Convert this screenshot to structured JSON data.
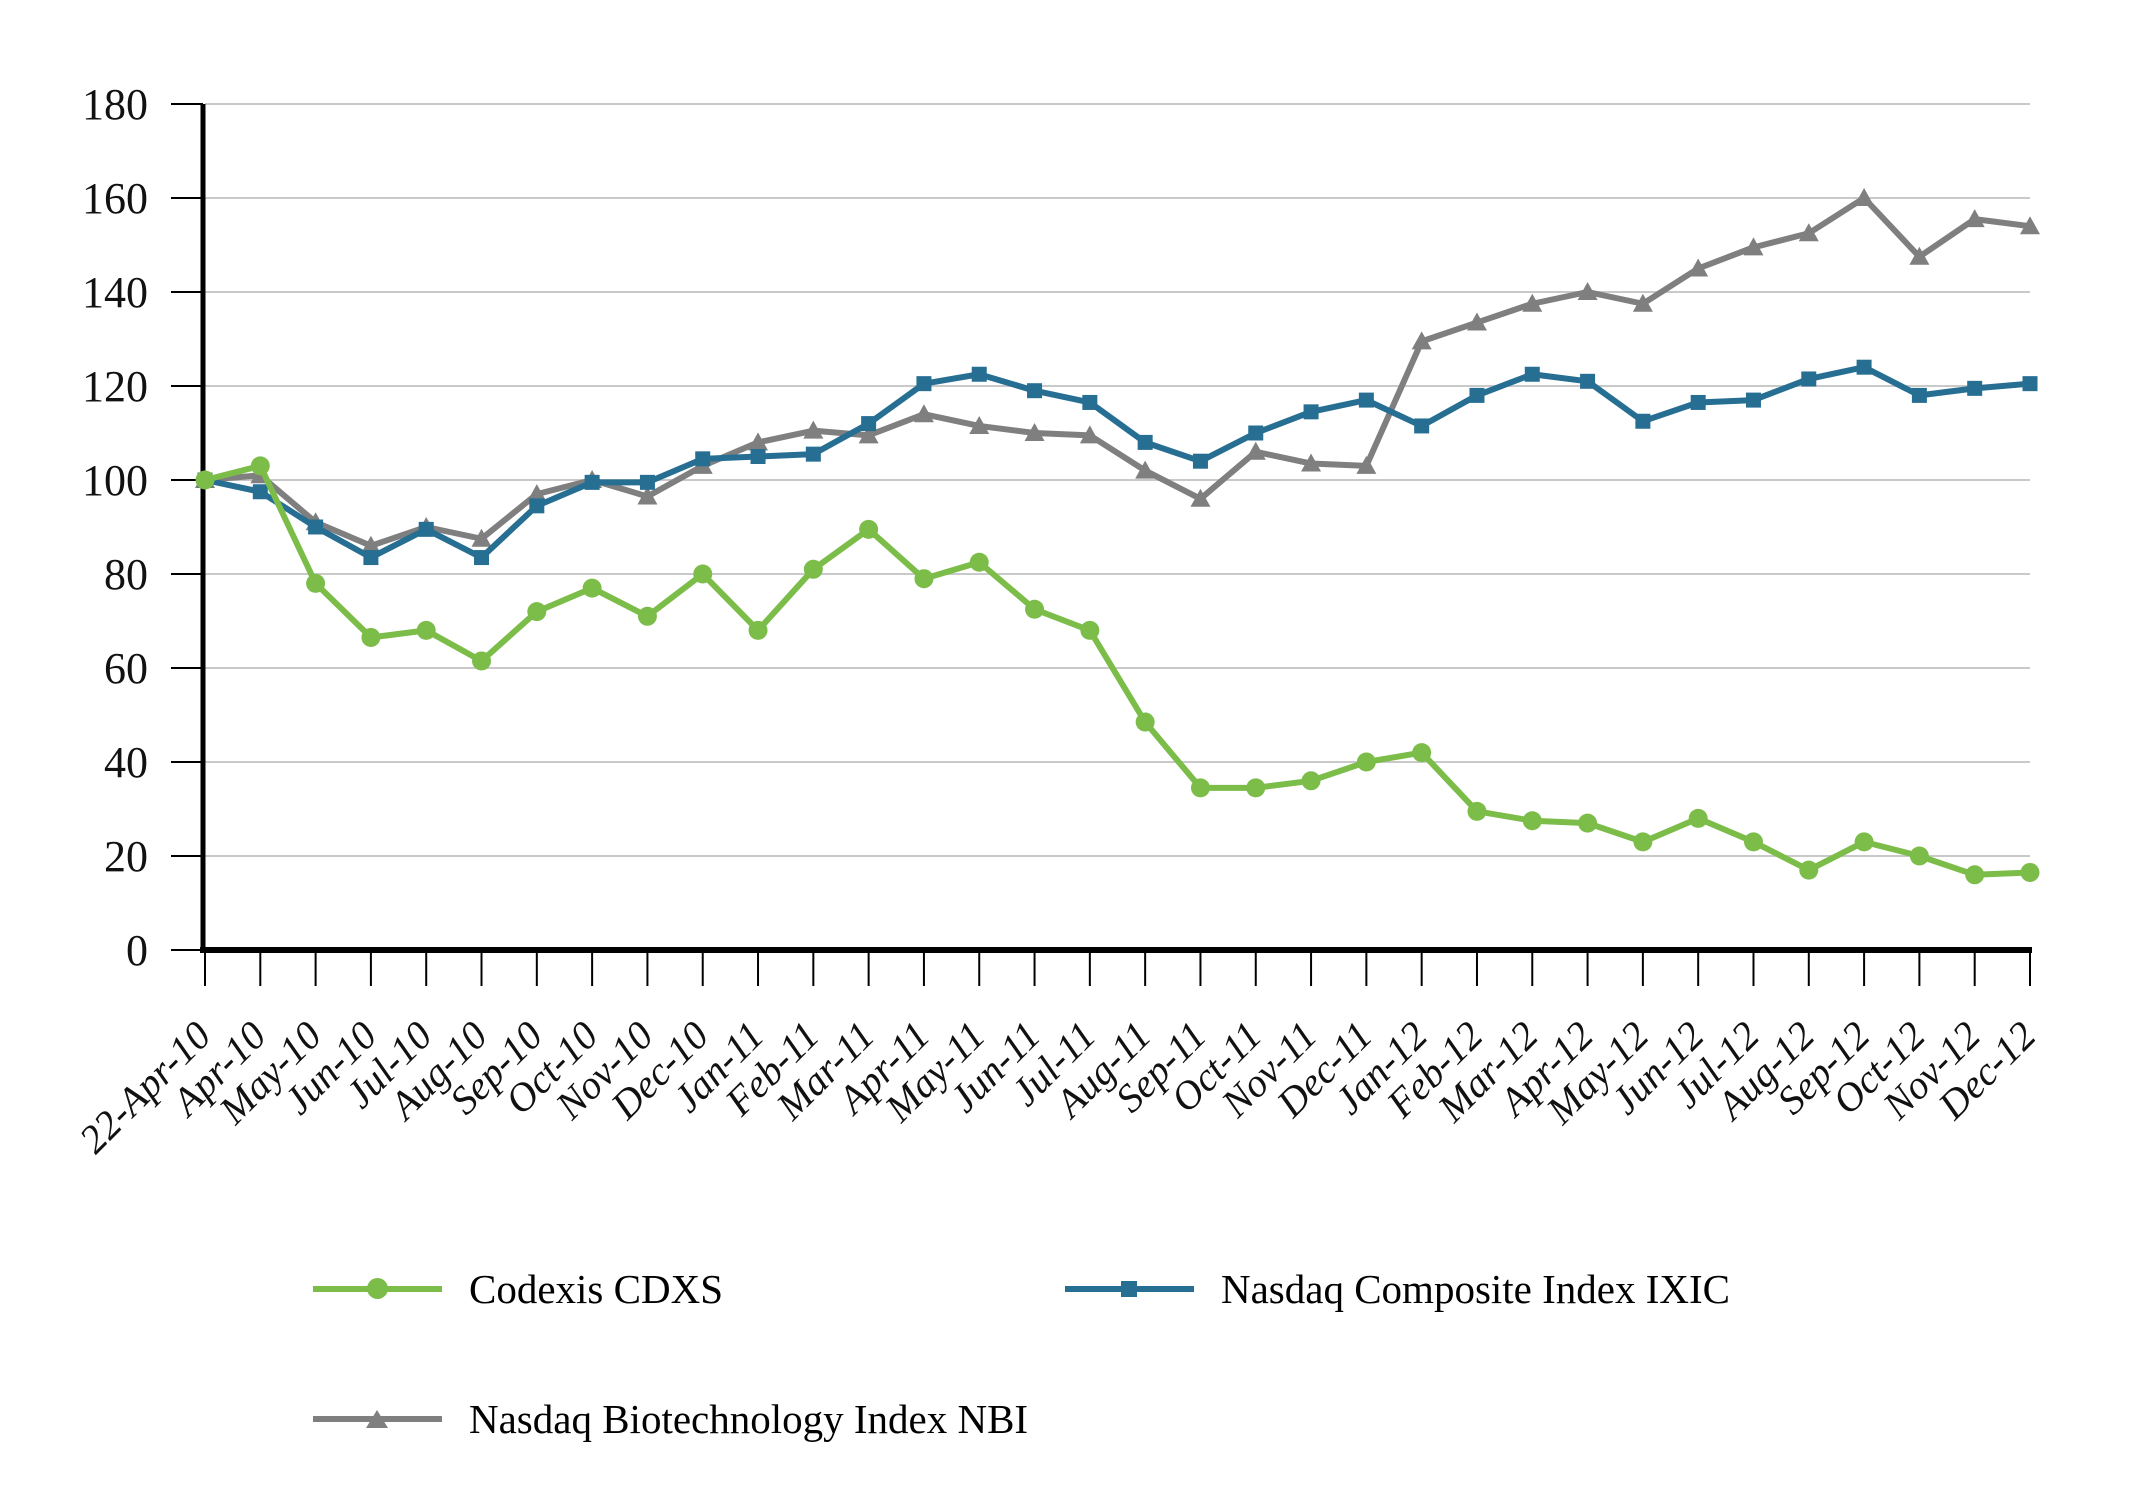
{
  "chart_data": {
    "type": "line",
    "title": "",
    "xlabel": "",
    "ylabel": "",
    "categories": [
      "22-Apr-10",
      "Apr-10",
      "May-10",
      "Jun-10",
      "Jul-10",
      "Aug-10",
      "Sep-10",
      "Oct-10",
      "Nov-10",
      "Dec-10",
      "Jan-11",
      "Feb-11",
      "Mar-11",
      "Apr-11",
      "May-11",
      "Jun-11",
      "Jul-11",
      "Aug-11",
      "Sep-11",
      "Oct-11",
      "Nov-11",
      "Dec-11",
      "Jan-12",
      "Feb-12",
      "Mar-12",
      "Apr-12",
      "May-12",
      "Jun-12",
      "Jul-12",
      "Aug-12",
      "Sep-12",
      "Oct-12",
      "Nov-12",
      "Dec-12"
    ],
    "series": [
      {
        "name": "Codexis CDXS",
        "marker": "circle",
        "color": "#7cbd4a",
        "values": [
          100,
          103,
          78,
          66.5,
          68,
          61.5,
          72,
          77,
          71,
          80,
          68,
          81,
          89.5,
          79,
          82.5,
          72.5,
          68,
          48.5,
          34.5,
          34.5,
          36,
          40,
          42,
          29.5,
          27.5,
          27,
          23,
          28,
          23,
          17,
          23,
          20,
          16,
          16.5
        ]
      },
      {
        "name": "Nasdaq Composite Index IXIC",
        "marker": "square",
        "color": "#276e93",
        "values": [
          100,
          97.5,
          90,
          83.5,
          89.5,
          83.5,
          94.5,
          99.5,
          99.5,
          104.5,
          105,
          105.5,
          112,
          120.5,
          122.5,
          119,
          116.5,
          108,
          104,
          110,
          114.5,
          117,
          111.5,
          118,
          122.5,
          121,
          112.5,
          116.5,
          117,
          121.5,
          124,
          118,
          119.5,
          120.5
        ]
      },
      {
        "name": "Nasdaq Biotechnology Index NBI",
        "marker": "triangle",
        "color": "#7f7f7f",
        "values": [
          100,
          101,
          91,
          86,
          90,
          87.5,
          97,
          100,
          96.5,
          103,
          108,
          110.5,
          109.5,
          114,
          111.5,
          110,
          109.5,
          102,
          96,
          106,
          103.5,
          103,
          129.5,
          133.5,
          137.5,
          140,
          137.5,
          145,
          149.5,
          152.5,
          160,
          147.5,
          155.5,
          154
        ]
      }
    ],
    "ylim": [
      0,
      180
    ],
    "ytick_step": 20,
    "ytick_labels": [
      "0",
      "20",
      "40",
      "60",
      "80",
      "100",
      "120",
      "140",
      "160",
      "180"
    ],
    "grid": "horizontal",
    "legend_position": "bottom",
    "axis_color": "#000000",
    "grid_color": "#c9c9c9",
    "tick_label_color": "#111111"
  }
}
